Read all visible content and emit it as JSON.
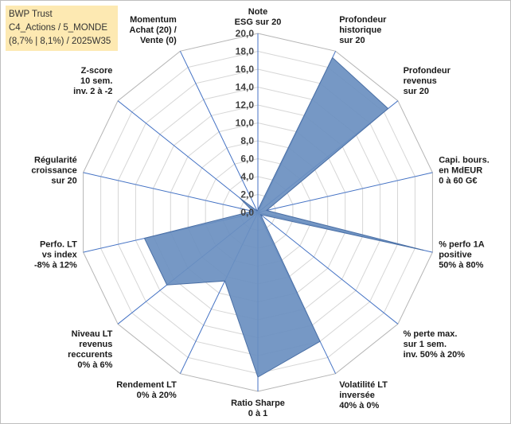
{
  "header": {
    "line1": "BWP Trust",
    "line2": "C4_Actions / 5_MONDE",
    "line3": "(8,7% | 8,1%) / 2025W35"
  },
  "chart_data": {
    "type": "radar",
    "r_min": 0,
    "r_max": 20,
    "r_step": 2,
    "ticks": [
      "0,0",
      "2,0",
      "4,0",
      "6,0",
      "8,0",
      "10,0",
      "12,0",
      "14,0",
      "16,0",
      "18,0",
      "20,0"
    ],
    "axes": [
      [
        "Note",
        "ESG sur 20"
      ],
      [
        "Profondeur",
        "historique",
        "sur 20"
      ],
      [
        "Profondeur",
        "revenus",
        "sur 20"
      ],
      [
        "Capi. bours.",
        "en MdEUR",
        "0 à 60 G€"
      ],
      [
        "% perfo 1A",
        "positive",
        "50% à 80%"
      ],
      [
        "% perte max.",
        "sur 1 sem.",
        "inv. 50% à 20%"
      ],
      [
        "Volatilité LT",
        "inversée",
        "40% à 0%"
      ],
      [
        "Ratio Sharpe",
        "0 à 1"
      ],
      [
        "Rendement LT",
        "0% à 20%"
      ],
      [
        "Niveau LT",
        "revenus",
        "reccurents",
        "0% à 6%"
      ],
      [
        "Perfo. LT",
        "vs index",
        "-8% à 12%"
      ],
      [
        "Régularité",
        "croissance",
        "sur 20"
      ],
      [
        "Z-score",
        "10 sem.",
        "inv. 2 à -2"
      ],
      [
        "Momentum",
        "Achat (20) /",
        "Vente (0)"
      ]
    ],
    "series": [
      {
        "values": [
          0.3,
          19.2,
          18.6,
          1.0,
          19.0,
          0.4,
          16.0,
          18.4,
          8.5,
          13.0,
          13.0,
          0.6,
          2.6,
          0.2
        ],
        "color": "#6a8fc0"
      }
    ],
    "grid": true
  }
}
